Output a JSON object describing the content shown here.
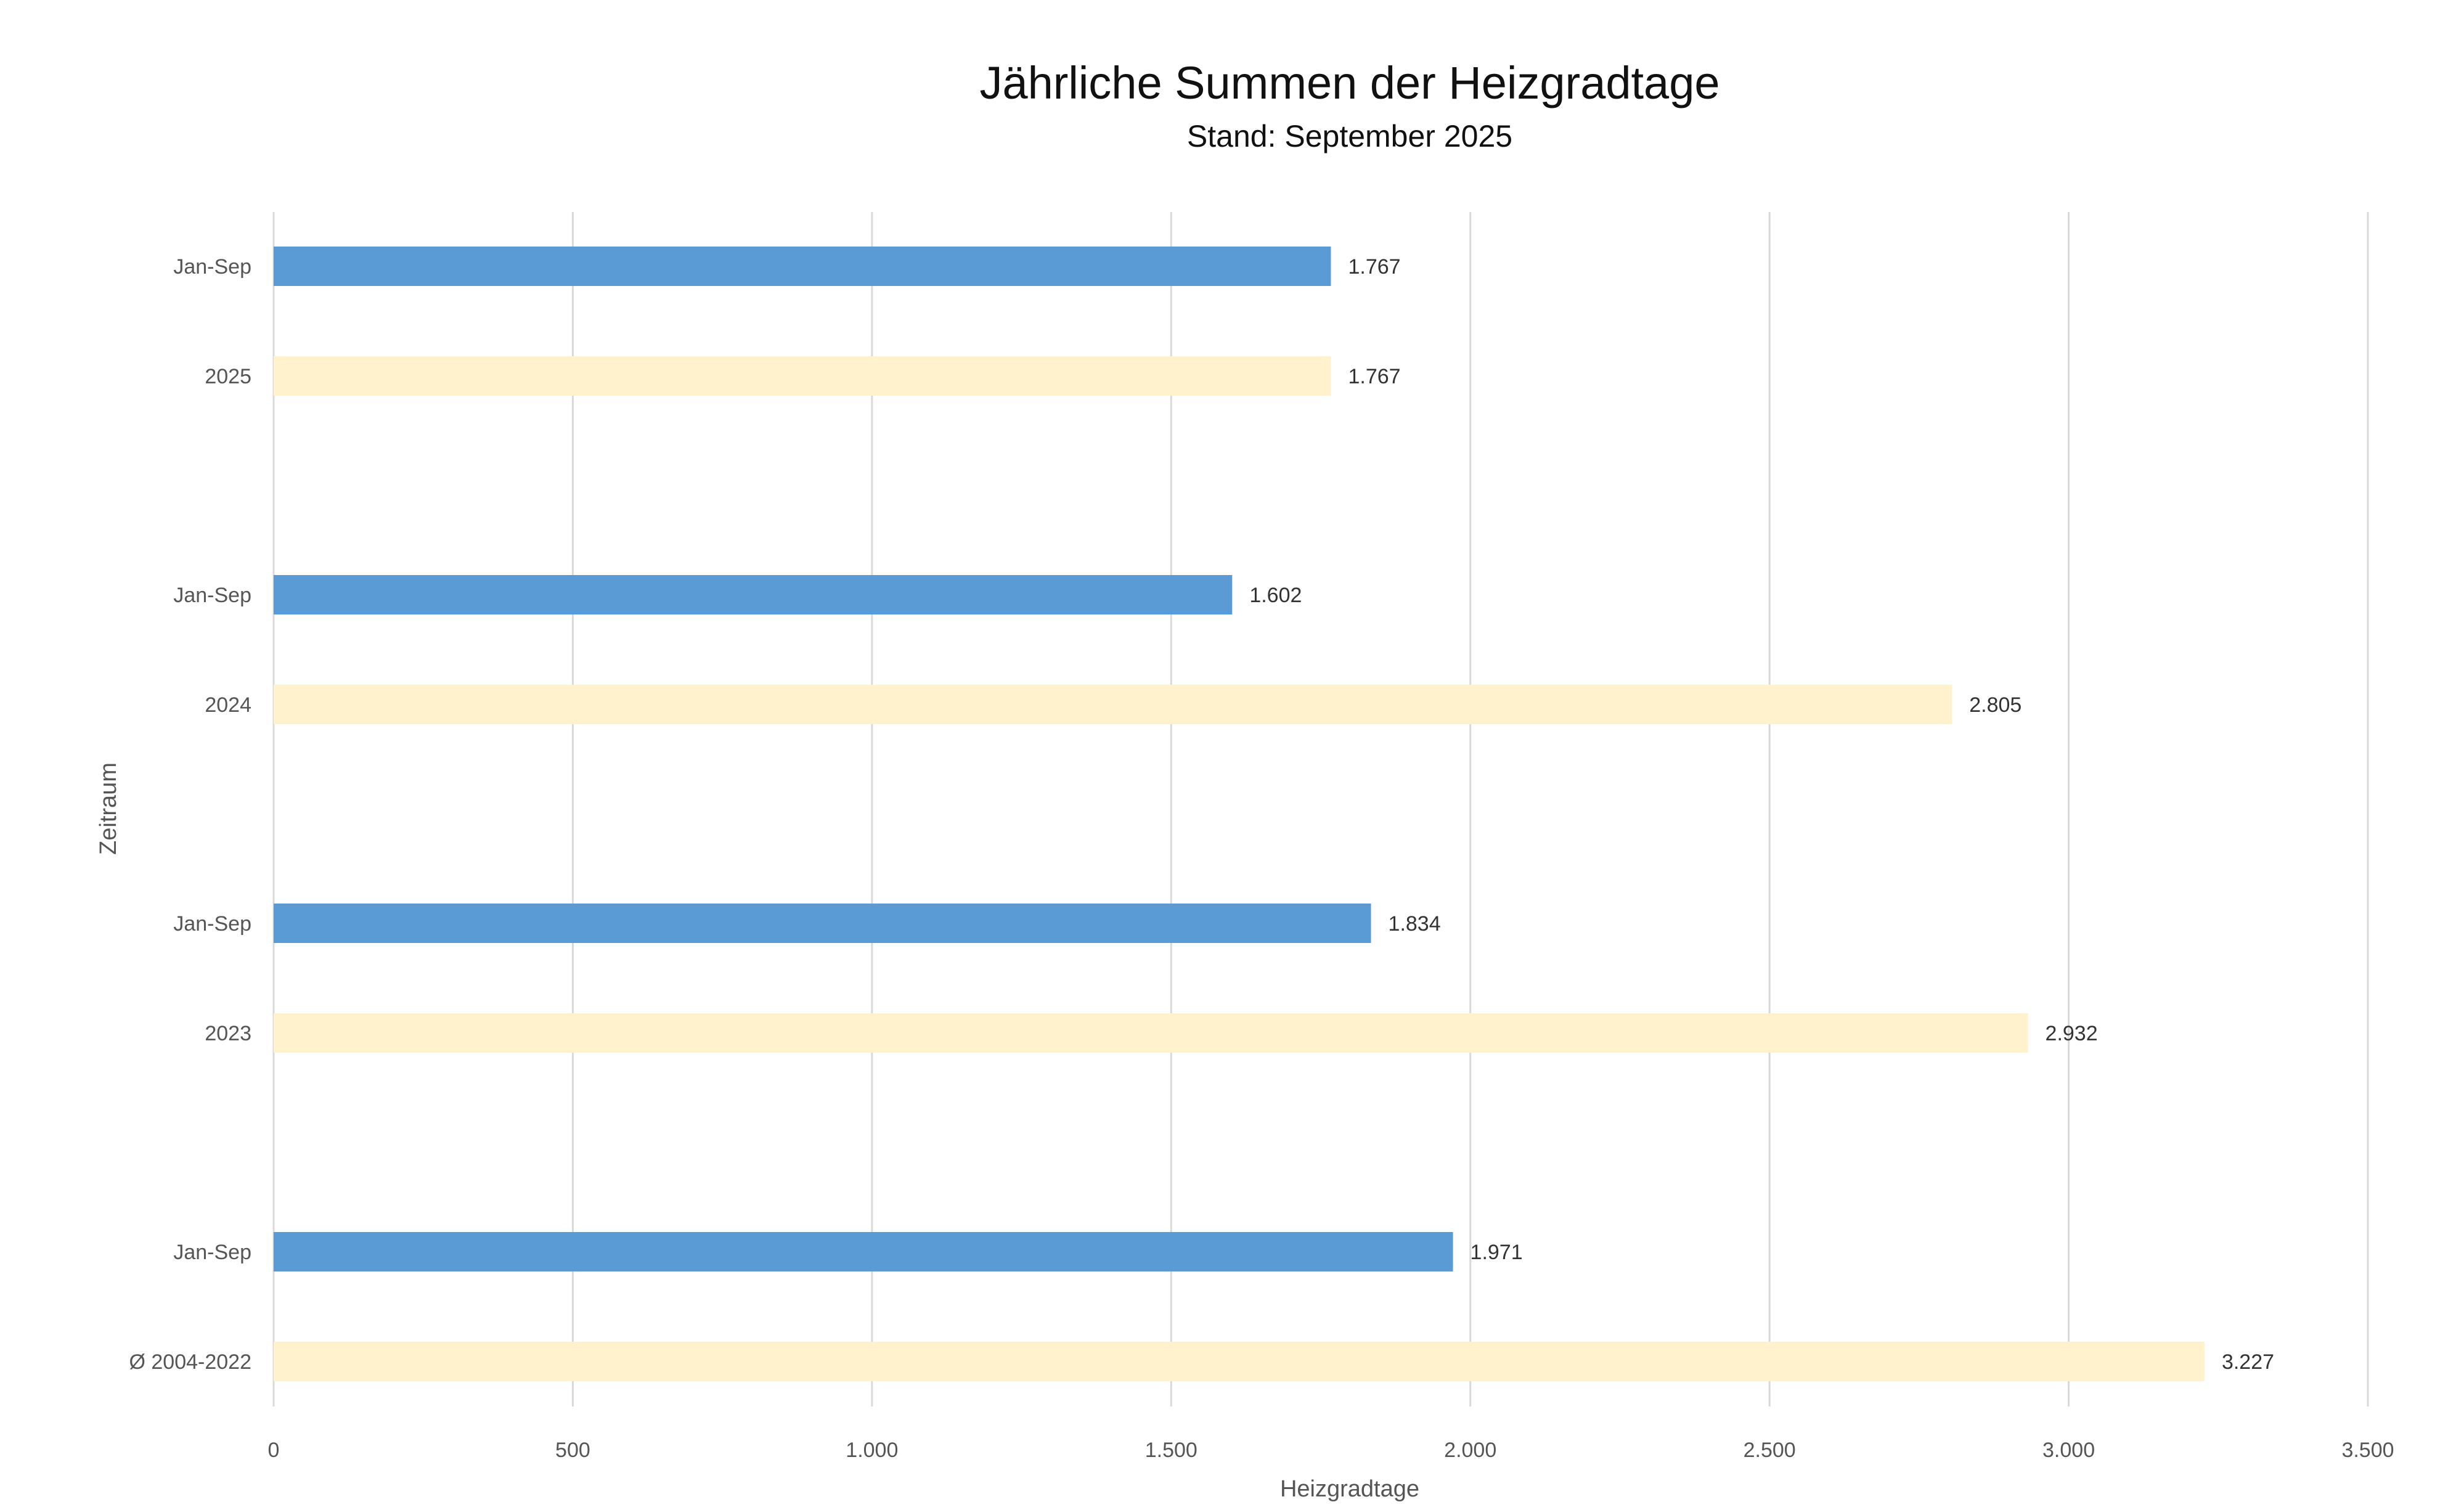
{
  "chart_data": {
    "type": "bar",
    "orientation": "horizontal",
    "title": "Jährliche Summen der Heizgradtage",
    "subtitle": "Stand: September 2025",
    "xlabel": "Heizgradtage",
    "ylabel": "Zeitraum",
    "xlim": [
      0,
      3500
    ],
    "x_ticks": [
      0,
      500,
      1000,
      1500,
      2000,
      2500,
      3000,
      3500
    ],
    "x_tick_labels": [
      "0",
      "500",
      "1.000",
      "1.500",
      "2.000",
      "2.500",
      "3.000",
      "3.500"
    ],
    "grid": "vertical",
    "legend": "none",
    "colors": {
      "jan_sep": "#5B9BD5",
      "full_year": "#FFF2CC",
      "grid": "#D9D9D9"
    },
    "bars": [
      {
        "category": "Jan-Sep",
        "value": 1767,
        "label": "1.767",
        "kind": "jan_sep"
      },
      {
        "category": "2025",
        "value": 1767,
        "label": "1.767",
        "kind": "full_year"
      },
      {
        "category": "Jan-Sep",
        "value": 1602,
        "label": "1.602",
        "kind": "jan_sep"
      },
      {
        "category": "2024",
        "value": 2805,
        "label": "2.805",
        "kind": "full_year"
      },
      {
        "category": "Jan-Sep",
        "value": 1834,
        "label": "1.834",
        "kind": "jan_sep"
      },
      {
        "category": "2023",
        "value": 2932,
        "label": "2.932",
        "kind": "full_year"
      },
      {
        "category": "Jan-Sep",
        "value": 1971,
        "label": "1.971",
        "kind": "jan_sep"
      },
      {
        "category": "Ø 2004-2022",
        "value": 3227,
        "label": "3.227",
        "kind": "full_year"
      }
    ]
  }
}
